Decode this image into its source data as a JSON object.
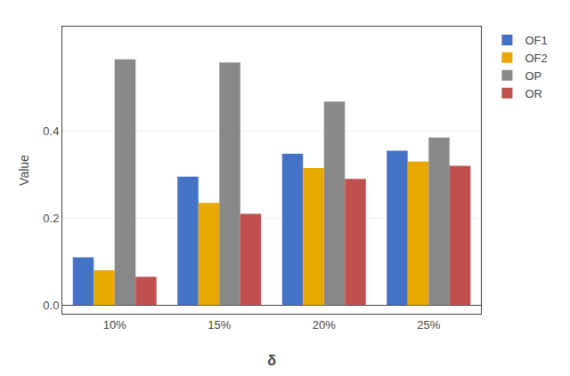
{
  "chart_data": {
    "type": "bar",
    "categories": [
      "10%",
      "15%",
      "20%",
      "25%"
    ],
    "series": [
      {
        "name": "OF1",
        "color": "#4472C4",
        "values": [
          0.11,
          0.295,
          0.348,
          0.355
        ]
      },
      {
        "name": "OF2",
        "color": "#E8A800",
        "values": [
          0.08,
          0.235,
          0.315,
          0.33
        ]
      },
      {
        "name": "OP",
        "color": "#888888",
        "values": [
          0.565,
          0.558,
          0.468,
          0.385
        ]
      },
      {
        "name": "OR",
        "color": "#C0504D",
        "values": [
          0.065,
          0.21,
          0.29,
          0.32
        ]
      }
    ],
    "xlabel": "δ",
    "ylabel": "Value",
    "ylim": [
      -0.02,
      0.64
    ],
    "yticks": [
      {
        "value": 0,
        "label": "0.0"
      },
      0.2,
      0.4
    ],
    "grid": true,
    "legend": "right"
  }
}
